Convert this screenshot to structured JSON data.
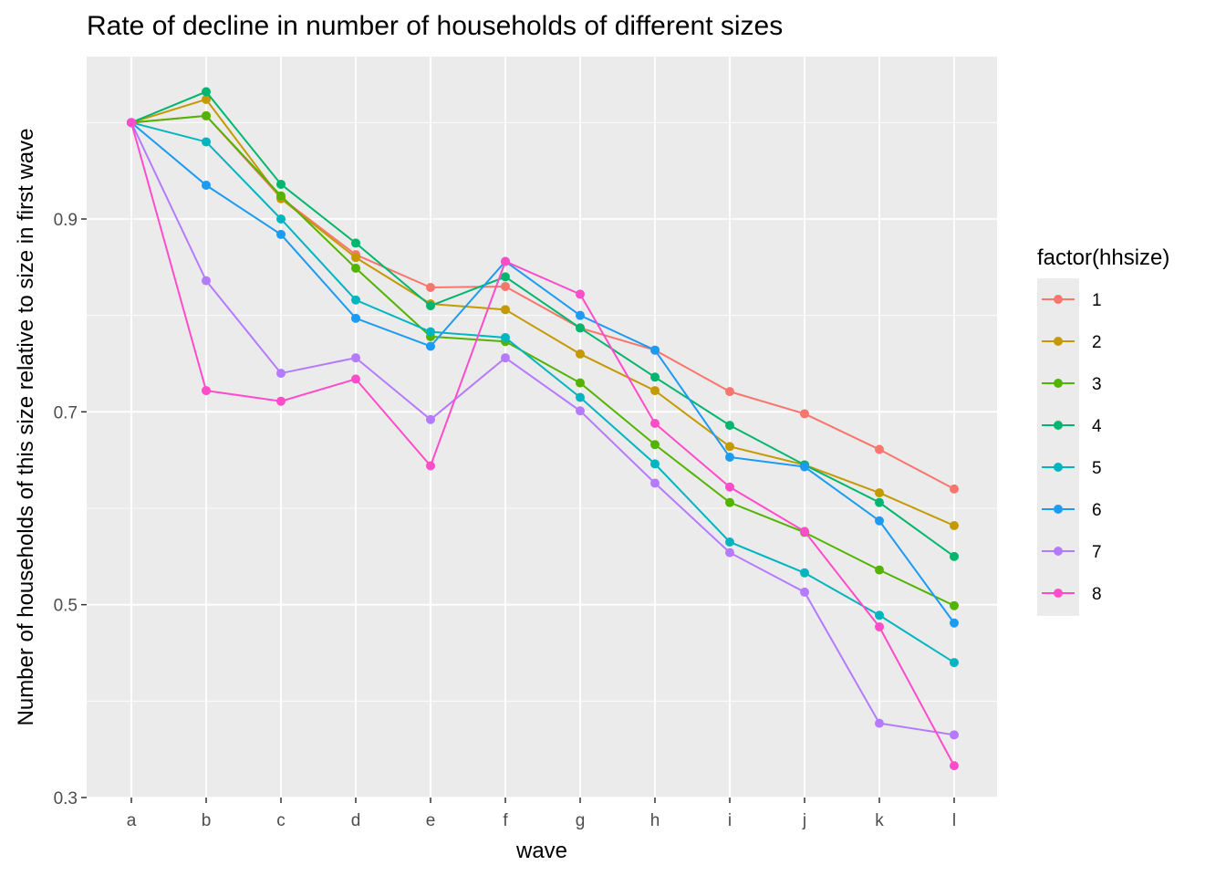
{
  "chart_data": {
    "type": "line",
    "title": "Rate of decline in number of households of different sizes",
    "xlabel": "wave",
    "ylabel": "Number of households of this size relative to size in first wave",
    "x": [
      "a",
      "b",
      "c",
      "d",
      "e",
      "f",
      "g",
      "h",
      "i",
      "j",
      "k",
      "l"
    ],
    "ylim": [
      0.3,
      1.032
    ],
    "yticks": [
      0.3,
      0.5,
      0.7,
      0.9
    ],
    "yticks_labels": [
      "0.3",
      "0.5",
      "0.7",
      "0.9"
    ],
    "grid": true,
    "legend": {
      "title": "factor(hhsize)",
      "position": "right"
    },
    "series": [
      {
        "name": "1",
        "color": "#F8766D",
        "values": [
          1.0,
          1.007,
          0.922,
          0.863,
          0.829,
          0.83,
          0.787,
          0.764,
          0.721,
          0.698,
          0.661,
          0.62
        ]
      },
      {
        "name": "2",
        "color": "#C49A00",
        "values": [
          1.0,
          1.024,
          0.921,
          0.86,
          0.812,
          0.806,
          0.76,
          0.722,
          0.664,
          0.645,
          0.616,
          0.582
        ]
      },
      {
        "name": "3",
        "color": "#53B400",
        "values": [
          1.0,
          1.007,
          0.924,
          0.849,
          0.778,
          0.773,
          0.73,
          0.666,
          0.606,
          0.575,
          0.536,
          0.499
        ]
      },
      {
        "name": "4",
        "color": "#00B66F",
        "values": [
          1.0,
          1.032,
          0.936,
          0.875,
          0.81,
          0.84,
          0.787,
          0.736,
          0.686,
          0.645,
          0.606,
          0.55
        ]
      },
      {
        "name": "5",
        "color": "#00B5C0",
        "values": [
          1.0,
          0.98,
          0.9,
          0.816,
          0.783,
          0.777,
          0.715,
          0.646,
          0.565,
          0.533,
          0.489,
          0.44
        ]
      },
      {
        "name": "6",
        "color": "#1C9BF2",
        "values": [
          1.0,
          0.935,
          0.884,
          0.797,
          0.768,
          0.856,
          0.8,
          0.764,
          0.653,
          0.643,
          0.587,
          0.481
        ]
      },
      {
        "name": "7",
        "color": "#B57BFF",
        "values": [
          1.0,
          0.836,
          0.74,
          0.756,
          0.692,
          0.756,
          0.701,
          0.626,
          0.554,
          0.513,
          0.377,
          0.365
        ]
      },
      {
        "name": "8",
        "color": "#FF4CC9",
        "values": [
          1.0,
          0.722,
          0.711,
          0.734,
          0.644,
          0.856,
          0.822,
          0.688,
          0.622,
          0.576,
          0.477,
          0.333
        ]
      }
    ]
  }
}
